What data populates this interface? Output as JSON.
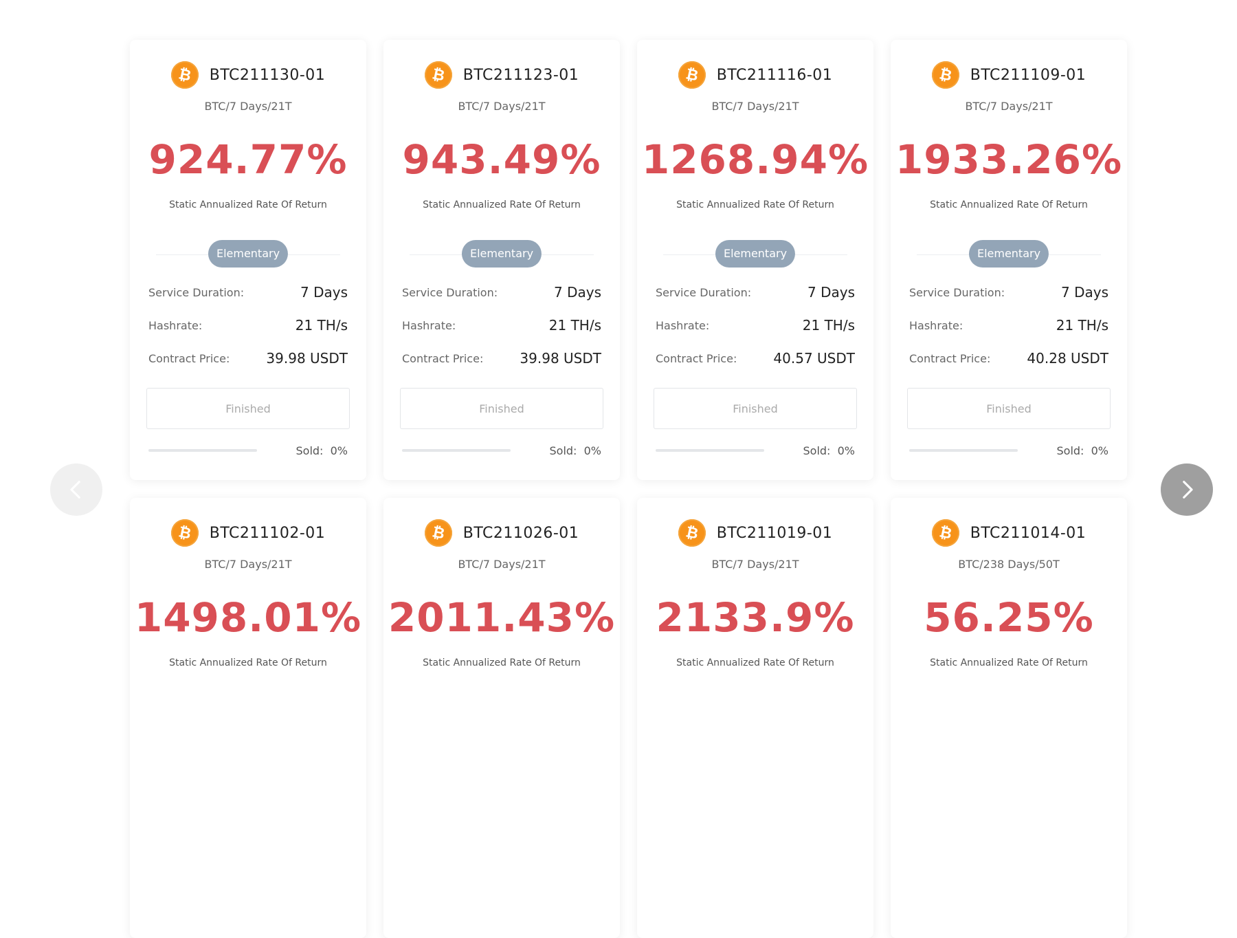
{
  "labels": {
    "rate_label": "Static Annualized Rate Of Return",
    "level": "Elementary",
    "service_duration": "Service Duration:",
    "hashrate": "Hashrate:",
    "contract_price": "Contract Price:",
    "status": "Finished",
    "sold_prefix": "Sold:"
  },
  "icons": {
    "coin": "bitcoin-icon",
    "prev": "chevron-left-icon",
    "next": "chevron-right-icon"
  },
  "colors": {
    "rate": "#d94f55",
    "badge": "#93a5b7",
    "coin": "#f7931a"
  },
  "products": [
    {
      "name": "BTC211130-01",
      "sub": "BTC/7 Days/21T",
      "rate": "924.77%",
      "duration": "7 Days",
      "hashrate": "21 TH/s",
      "price": "39.98 USDT",
      "sold": "0%",
      "sold_fraction": 0
    },
    {
      "name": "BTC211123-01",
      "sub": "BTC/7 Days/21T",
      "rate": "943.49%",
      "duration": "7 Days",
      "hashrate": "21 TH/s",
      "price": "39.98 USDT",
      "sold": "0%",
      "sold_fraction": 0
    },
    {
      "name": "BTC211116-01",
      "sub": "BTC/7 Days/21T",
      "rate": "1268.94%",
      "duration": "7 Days",
      "hashrate": "21 TH/s",
      "price": "40.57 USDT",
      "sold": "0%",
      "sold_fraction": 0
    },
    {
      "name": "BTC211109-01",
      "sub": "BTC/7 Days/21T",
      "rate": "1933.26%",
      "duration": "7 Days",
      "hashrate": "21 TH/s",
      "price": "40.28 USDT",
      "sold": "0%",
      "sold_fraction": 0
    },
    {
      "name": "BTC211102-01",
      "sub": "BTC/7 Days/21T",
      "rate": "1498.01%"
    },
    {
      "name": "BTC211026-01",
      "sub": "BTC/7 Days/21T",
      "rate": "2011.43%"
    },
    {
      "name": "BTC211019-01",
      "sub": "BTC/7 Days/21T",
      "rate": "2133.9%"
    },
    {
      "name": "BTC211014-01",
      "sub": "BTC/238 Days/50T",
      "rate": "56.25%"
    }
  ]
}
